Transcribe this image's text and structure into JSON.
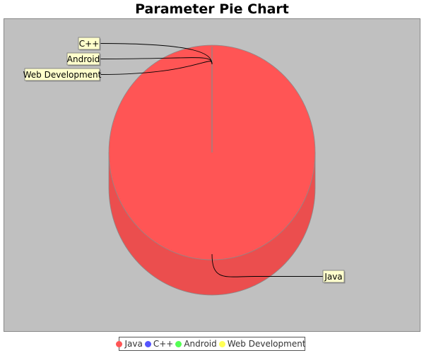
{
  "chart_data": {
    "type": "pie",
    "title": "Parameter Pie Chart",
    "three_d": true,
    "slices": [
      {
        "label": "Java",
        "value": 100,
        "color": "#ff5555"
      },
      {
        "label": "C++",
        "value": 0,
        "color": "#5555ff"
      },
      {
        "label": "Android",
        "value": 0,
        "color": "#55ff55"
      },
      {
        "label": "Web Development",
        "value": 0,
        "color": "#ffff55"
      }
    ],
    "legend_position": "bottom",
    "plot_background": "#c0c0c0",
    "label_background": "#ffffcc"
  }
}
